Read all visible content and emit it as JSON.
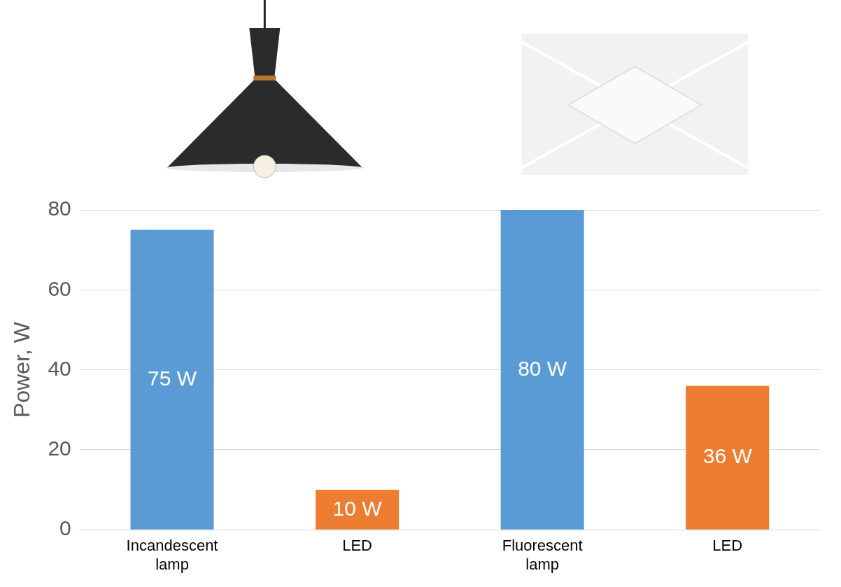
{
  "chart_data": {
    "type": "bar",
    "categories": [
      "Incandescent lamp",
      "LED",
      "Fluorescent lamp",
      "LED"
    ],
    "values": [
      75,
      10,
      80,
      36
    ],
    "value_labels": [
      "75 W",
      "10 W",
      "80 W",
      "36 W"
    ],
    "colors": [
      "#5b9bd5",
      "#ed7d31",
      "#5b9bd5",
      "#ed7d31"
    ],
    "ylabel": "Power, W",
    "ylim": [
      0,
      80
    ],
    "yticks": [
      0,
      20,
      40,
      60,
      80
    ],
    "grid": true,
    "data_labels": true
  }
}
